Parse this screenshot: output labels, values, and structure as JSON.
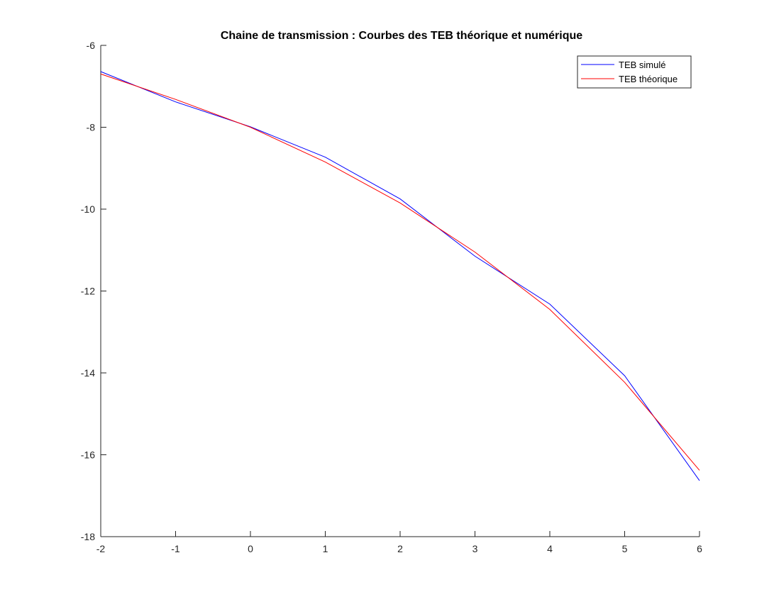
{
  "chart_data": {
    "type": "line",
    "title": "Chaine de transmission : Courbes des TEB théorique et numérique",
    "xlabel": "",
    "ylabel": "",
    "xlim": [
      -2,
      6
    ],
    "ylim": [
      -18,
      -6
    ],
    "xticks": [
      -2,
      -1,
      0,
      1,
      2,
      3,
      4,
      5,
      6
    ],
    "yticks": [
      -6,
      -8,
      -10,
      -12,
      -14,
      -16,
      -18
    ],
    "xtick_labels": [
      "-2",
      "-1",
      "0",
      "1",
      "2",
      "3",
      "4",
      "5",
      "6"
    ],
    "ytick_labels": [
      "-6",
      "-8",
      "-10",
      "-12",
      "-14",
      "-16",
      "-18"
    ],
    "grid": false,
    "legend_position": "top-right",
    "x": [
      -2,
      -1,
      0,
      1,
      2,
      3,
      4,
      5,
      6
    ],
    "series": [
      {
        "name": "TEB simulé",
        "color": "#0000ff",
        "values": [
          -6.64,
          -7.38,
          -7.99,
          -8.73,
          -9.75,
          -11.15,
          -12.32,
          -14.07,
          -16.63
        ]
      },
      {
        "name": "TEB théorique",
        "color": "#ff0000",
        "values": [
          -6.7,
          -7.32,
          -8.0,
          -8.85,
          -9.85,
          -11.05,
          -12.45,
          -14.23,
          -16.38
        ]
      }
    ]
  }
}
